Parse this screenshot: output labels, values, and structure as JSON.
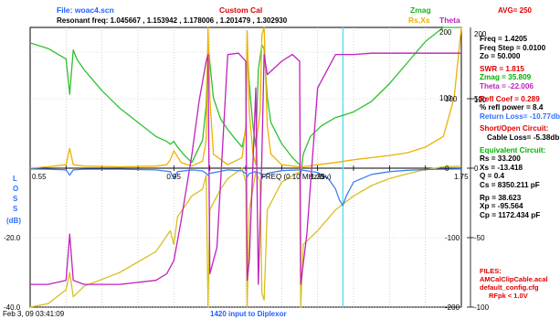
{
  "header": {
    "file_label": "File: woac4.scn",
    "cal_label": "Custom Cal",
    "resonant": "Resonant freq: 1.045667 , 1.153942 , 1.178006 , 1.201479 , 1.302930",
    "avg": "AVG= 250",
    "legend_zmag": "Zmag",
    "legend_rsxs": "Rs,Xs",
    "legend_theta": "Theta"
  },
  "footer": {
    "date": "Feb 3, 09  03:41:09",
    "note": "1420 input to Diplexor"
  },
  "side": {
    "freq": "Freq =  1.4205",
    "freq_step": "Freq Step =  0.0100",
    "zo": "Zo =  50.000",
    "swr": "SWR =  1.815",
    "zmag": "Zmag =  35.809",
    "theta": "Theta =  -22.006",
    "refl_coef": "Refl Coef  =  0.289",
    "refl_power": "% refl power =  8.4",
    "return_loss": "Return Loss= -10.77db",
    "short_open": "Short/Open Circuit:",
    "cable_loss": "Cable Loss= -5.38db",
    "equiv": "Equivalent Circuit:",
    "rs": "Rs =  33.200",
    "xs": "Xs =  -13.418",
    "q": "Q =  0.4",
    "cs": "Cs = 8350.211  pF",
    "rp": "Rp =  38.623",
    "xp": "Xp =  -95.564",
    "cp": "Cp = 1172.434  pF",
    "files_label": "FILES:",
    "file1": "AMCalClipCable.acal",
    "file2": "default_config.cfg",
    "rfpk": "RFpk < 1.0V"
  },
  "chart_data": {
    "type": "line",
    "xlabel": "FREQ (0.10 MHz/div)",
    "ylabel_left": "LOSS (dB)",
    "xlim": [
      0.55,
      1.75
    ],
    "x_ticks": [
      "0.55",
      "0.95",
      "1.35",
      "1.75"
    ],
    "left_ticks": [
      "-20.0",
      "-40.0"
    ],
    "right_inner_ticks": [
      "50",
      "0",
      "-50",
      "-100"
    ],
    "right_outer_ticks": [
      "100",
      "0",
      "-100",
      "-200"
    ],
    "right_top_ticks": [
      "200",
      "100"
    ],
    "cursor_x": 1.4205,
    "series": [
      {
        "name": "Zmag",
        "color": "#30c030",
        "x": [
          0.55,
          0.6,
          0.65,
          0.66,
          0.67,
          0.68,
          0.7,
          0.75,
          0.8,
          0.85,
          0.9,
          0.93,
          0.94,
          0.95,
          0.96,
          0.98,
          1.0,
          1.03,
          1.04,
          1.045,
          1.05,
          1.06,
          1.08,
          1.1,
          1.12,
          1.14,
          1.15,
          1.154,
          1.16,
          1.17,
          1.178,
          1.185,
          1.195,
          1.201,
          1.21,
          1.22,
          1.25,
          1.28,
          1.3,
          1.303,
          1.31,
          1.33,
          1.36,
          1.4,
          1.42,
          1.45,
          1.5,
          1.55,
          1.6,
          1.65,
          1.7,
          1.75
        ],
        "y": [
          178,
          170,
          155,
          105,
          168,
          155,
          140,
          110,
          85,
          65,
          45,
          38,
          34,
          38,
          30,
          18,
          8,
          40,
          90,
          175,
          150,
          100,
          70,
          55,
          42,
          30,
          55,
          170,
          120,
          60,
          30,
          140,
          175,
          170,
          100,
          65,
          35,
          15,
          5,
          -10,
          20,
          45,
          60,
          72,
          75,
          80,
          95,
          120,
          150,
          180,
          200,
          200
        ]
      },
      {
        "name": "Rs,Xs",
        "color": "#f0b000",
        "x": [
          0.55,
          0.6,
          0.65,
          0.66,
          0.67,
          0.7,
          0.8,
          0.9,
          0.93,
          0.94,
          0.95,
          0.97,
          1.0,
          1.03,
          1.04,
          1.045,
          1.05,
          1.06,
          1.1,
          1.14,
          1.15,
          1.154,
          1.16,
          1.17,
          1.178,
          1.18,
          1.19,
          1.195,
          1.201,
          1.21,
          1.22,
          1.25,
          1.3,
          1.303,
          1.31,
          1.35,
          1.4,
          1.45,
          1.5,
          1.55,
          1.6,
          1.65,
          1.7,
          1.73,
          1.75
        ],
        "y": [
          0,
          2,
          5,
          28,
          5,
          3,
          2,
          3,
          5,
          12,
          25,
          8,
          3,
          10,
          40,
          200,
          100,
          20,
          5,
          15,
          60,
          195,
          80,
          20,
          5,
          40,
          80,
          190,
          200,
          60,
          20,
          5,
          2,
          0,
          2,
          5,
          8,
          12,
          15,
          18,
          22,
          30,
          45,
          100,
          200
        ]
      },
      {
        "name": "Xs",
        "color": "#d8c020",
        "x": [
          0.55,
          0.6,
          0.65,
          0.66,
          0.67,
          0.7,
          0.8,
          0.9,
          0.94,
          0.95,
          0.96,
          1.0,
          1.03,
          1.04,
          1.045,
          1.05,
          1.08,
          1.1,
          1.14,
          1.15,
          1.154,
          1.16,
          1.178,
          1.19,
          1.195,
          1.201,
          1.21,
          1.25,
          1.3,
          1.303,
          1.31,
          1.35,
          1.4,
          1.45,
          1.5,
          1.55,
          1.6,
          1.65,
          1.7,
          1.75
        ],
        "y": [
          -200,
          -195,
          -175,
          -150,
          -185,
          -170,
          -150,
          -120,
          -90,
          -110,
          -70,
          -40,
          -30,
          -10,
          -200,
          -60,
          -30,
          -15,
          0,
          -20,
          -200,
          -60,
          -5,
          -20,
          -180,
          -190,
          -60,
          -20,
          -5,
          -205,
          -110,
          -90,
          -60,
          -40,
          -25,
          -15,
          -8,
          -2,
          2,
          3
        ]
      },
      {
        "name": "Theta",
        "color": "#c020c0",
        "x": [
          0.55,
          0.6,
          0.65,
          0.66,
          0.67,
          0.7,
          0.8,
          0.9,
          0.93,
          0.95,
          0.97,
          1.0,
          1.02,
          1.04,
          1.045,
          1.05,
          1.07,
          1.1,
          1.13,
          1.15,
          1.154,
          1.16,
          1.178,
          1.185,
          1.195,
          1.201,
          1.21,
          1.25,
          1.28,
          1.3,
          1.303,
          1.32,
          1.35,
          1.4,
          1.45,
          1.5,
          1.55,
          1.6,
          1.65,
          1.7,
          1.75
        ],
        "y": [
          -88,
          -88,
          -85,
          -50,
          -85,
          -88,
          -88,
          -85,
          -80,
          -70,
          -40,
          10,
          50,
          80,
          85,
          -80,
          -60,
          85,
          86,
          80,
          -85,
          -70,
          60,
          -88,
          10,
          85,
          70,
          80,
          85,
          80,
          -88,
          -50,
          60,
          85,
          85,
          86,
          86,
          86,
          86,
          86,
          86
        ]
      },
      {
        "name": "Return Loss",
        "color": "#4080f0",
        "x": [
          0.55,
          0.6,
          0.65,
          0.66,
          0.67,
          0.7,
          0.8,
          0.9,
          0.94,
          0.95,
          0.96,
          1.0,
          1.03,
          1.04,
          1.045,
          1.05,
          1.1,
          1.14,
          1.15,
          1.154,
          1.16,
          1.178,
          1.19,
          1.195,
          1.201,
          1.21,
          1.25,
          1.3,
          1.303,
          1.31,
          1.35,
          1.38,
          1.4,
          1.41,
          1.42,
          1.43,
          1.45,
          1.5,
          1.55,
          1.6,
          1.65,
          1.7,
          1.75
        ],
        "y": [
          -0.2,
          -0.3,
          -0.5,
          -2.0,
          -0.5,
          -0.3,
          -0.3,
          -0.5,
          -1.0,
          -3.0,
          -1.0,
          -0.5,
          -0.8,
          -1.5,
          -2.0,
          -1.5,
          -0.5,
          -0.8,
          -1.5,
          -2.5,
          -1.5,
          -1.0,
          -1.5,
          -2.0,
          -2.5,
          -1.5,
          -0.7,
          -0.5,
          -0.5,
          -0.6,
          -1.2,
          -3.0,
          -6.0,
          -9.0,
          -10.77,
          -8.0,
          -4.0,
          -1.8,
          -1.0,
          -0.6,
          -0.4,
          -0.3,
          -0.2
        ]
      }
    ]
  }
}
